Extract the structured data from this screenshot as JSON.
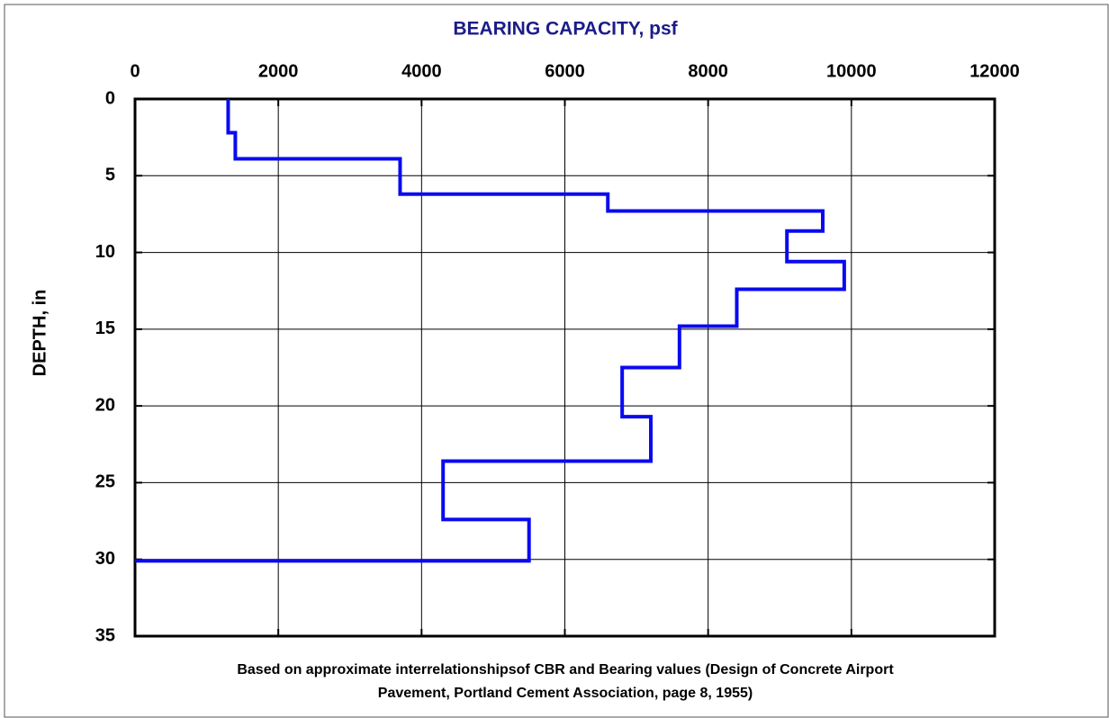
{
  "chart_data": {
    "type": "line",
    "title": "BEARING CAPACITY, psf",
    "y_label": "DEPTH, in",
    "annotation": [
      "Based on approximate interrelationshipsof CBR and Bearing values (Design of Concrete Airport",
      "Pavement, Portland Cement Association, page 8, 1955)"
    ],
    "x": [
      1300,
      1300,
      1400,
      1400,
      3700,
      3700,
      6600,
      6600,
      9600,
      9600,
      9100,
      9100,
      9900,
      9900,
      8400,
      8400,
      7600,
      7600,
      6800,
      6800,
      7200,
      7200,
      4300,
      4300,
      5500,
      5500,
      0
    ],
    "series": [
      {
        "color": "#0a0af0",
        "values": [
          0,
          2.2,
          2.2,
          3.9,
          3.9,
          6.2,
          6.2,
          7.3,
          7.3,
          8.6,
          8.6,
          10.6,
          10.6,
          12.4,
          12.4,
          14.8,
          14.8,
          17.5,
          17.5,
          20.7,
          20.7,
          23.6,
          23.6,
          27.4,
          27.4,
          30.1,
          30.1
        ]
      }
    ],
    "xlim": [
      0,
      12000
    ],
    "xticks": [
      0,
      2000,
      4000,
      6000,
      8000,
      10000,
      12000
    ],
    "ylim": [
      0,
      35
    ],
    "yticks": [
      0,
      5,
      10,
      15,
      20,
      25,
      30,
      35
    ],
    "y_inverted": true,
    "x_axis_position": "top",
    "grid": true
  }
}
